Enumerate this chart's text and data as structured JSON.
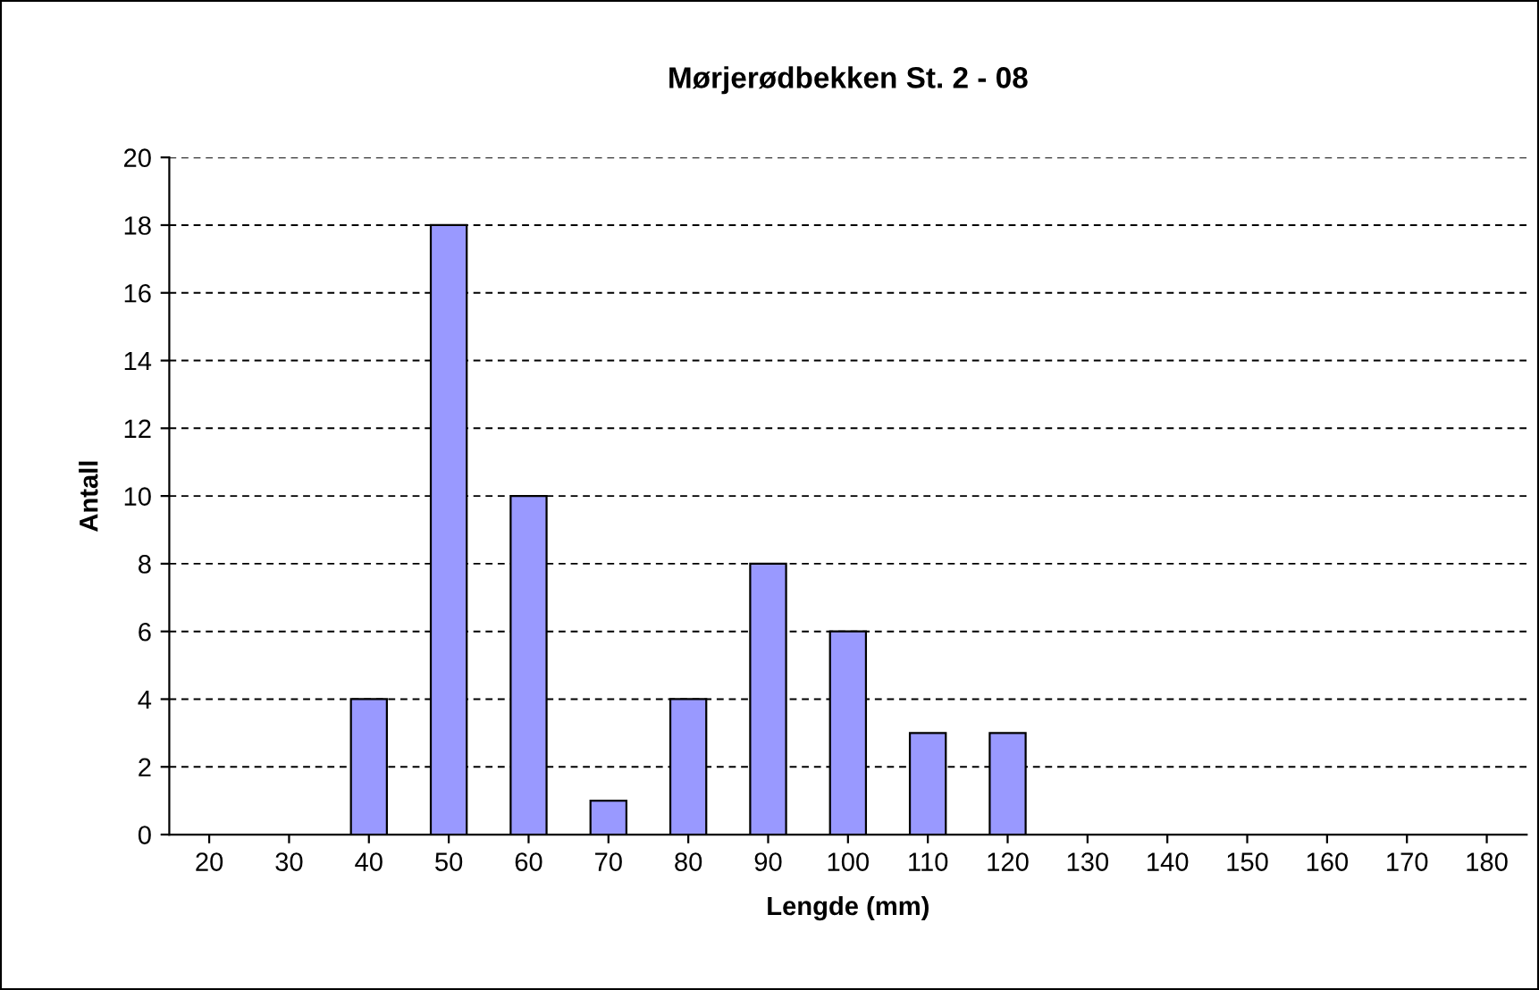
{
  "chart_data": {
    "type": "bar",
    "title": "Mørjerødbekken St. 2 - 08",
    "xlabel": "Lengde (mm)",
    "ylabel": "Antall",
    "categories": [
      "20",
      "30",
      "40",
      "50",
      "60",
      "70",
      "80",
      "90",
      "100",
      "110",
      "120",
      "130",
      "140",
      "150",
      "160",
      "170",
      "180"
    ],
    "values": [
      0,
      0,
      4,
      18,
      10,
      1,
      4,
      8,
      6,
      3,
      3,
      0,
      0,
      0,
      0,
      0,
      0
    ],
    "color": "#9999ff",
    "ylim": [
      0,
      20
    ],
    "yticks": [
      0,
      2,
      4,
      6,
      8,
      10,
      12,
      14,
      16,
      18,
      20
    ],
    "grid": "y",
    "legend": false
  }
}
